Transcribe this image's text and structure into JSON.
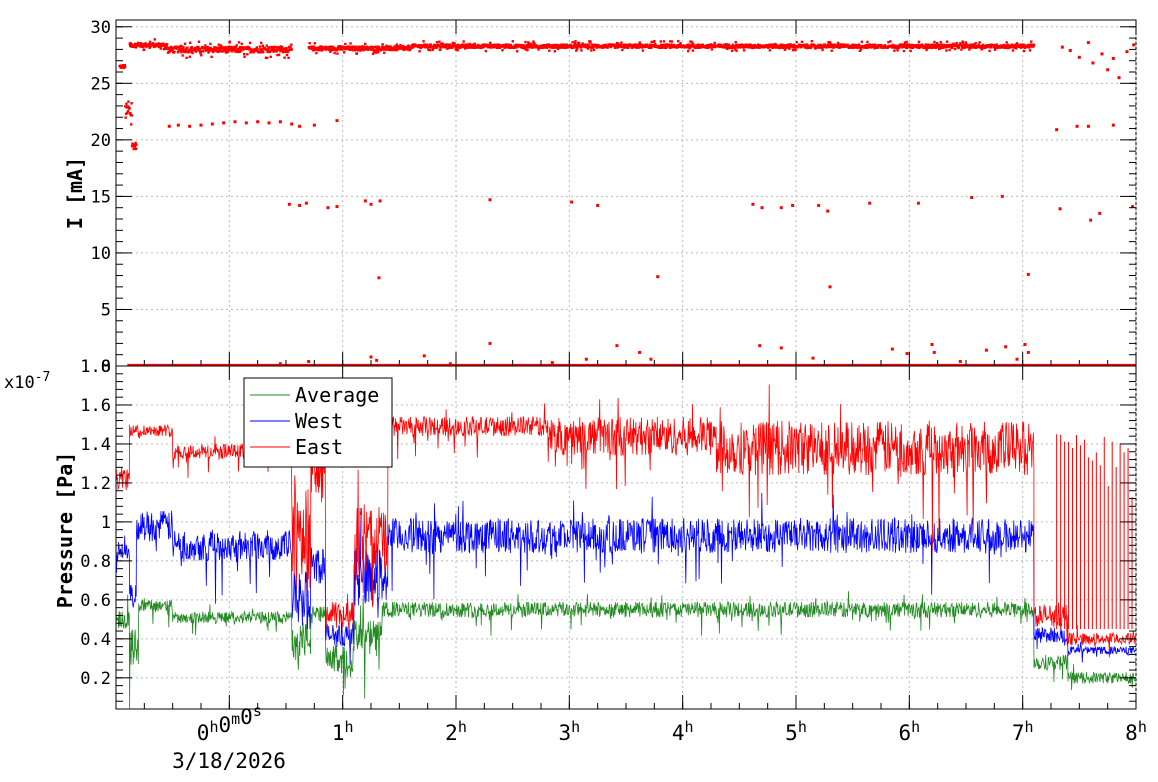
{
  "chart_data": [
    {
      "type": "scatter",
      "id": "current",
      "ylabel": "I [mA]",
      "ylim": [
        0,
        30.6
      ],
      "xlim": [
        -1.0,
        8.0
      ],
      "x_unit": "hours",
      "yticks": [
        "0",
        "5",
        "10",
        "15",
        "20",
        "25",
        "30"
      ],
      "ytick_values": [
        0,
        5,
        10,
        15,
        20,
        25,
        30
      ],
      "grid": true,
      "series": [
        {
          "color": "#ff0000",
          "bands": [
            {
              "from": -0.97,
              "to": -0.92,
              "level": 26.5,
              "jitter": 0.3
            },
            {
              "from": -0.92,
              "to": -0.86,
              "level": 22.5,
              "jitter": 1.5
            },
            {
              "from": -0.86,
              "to": -0.82,
              "level": 19.5,
              "jitter": 0.6
            },
            {
              "from": -0.88,
              "to": -0.55,
              "level": 28.4,
              "jitter": 0.35
            },
            {
              "from": -0.55,
              "to": 0.55,
              "level": 28.0,
              "jitter": 0.5
            },
            {
              "from": 0.7,
              "to": 1.6,
              "level": 28.1,
              "jitter": 0.35
            },
            {
              "from": 1.6,
              "to": 7.1,
              "level": 28.3,
              "jitter": 0.3
            }
          ],
          "points": [
            [
              -0.53,
              21.2
            ],
            [
              -0.45,
              21.3
            ],
            [
              -0.35,
              21.2
            ],
            [
              -0.25,
              21.3
            ],
            [
              -0.15,
              21.4
            ],
            [
              -0.05,
              21.5
            ],
            [
              0.05,
              21.6
            ],
            [
              0.15,
              21.5
            ],
            [
              0.25,
              21.6
            ],
            [
              0.35,
              21.5
            ],
            [
              0.45,
              21.6
            ],
            [
              0.55,
              21.4
            ],
            [
              0.62,
              21.2
            ],
            [
              0.75,
              21.3
            ],
            [
              0.95,
              21.7
            ],
            [
              0.53,
              14.3
            ],
            [
              0.62,
              14.2
            ],
            [
              0.68,
              14.4
            ],
            [
              0.87,
              14.0
            ],
            [
              0.95,
              14.1
            ],
            [
              1.2,
              14.6
            ],
            [
              1.25,
              14.3
            ],
            [
              1.33,
              14.6
            ],
            [
              1.32,
              7.8
            ],
            [
              2.3,
              14.7
            ],
            [
              3.02,
              14.5
            ],
            [
              3.25,
              14.2
            ],
            [
              3.78,
              7.9
            ],
            [
              4.62,
              14.3
            ],
            [
              4.7,
              14.0
            ],
            [
              4.87,
              14.0
            ],
            [
              4.97,
              14.2
            ],
            [
              5.2,
              14.2
            ],
            [
              5.28,
              13.7
            ],
            [
              5.3,
              7.0
            ],
            [
              5.65,
              14.4
            ],
            [
              6.08,
              14.4
            ],
            [
              6.55,
              14.9
            ],
            [
              6.82,
              15.0
            ],
            [
              7.05,
              8.1
            ],
            [
              7.3,
              20.9
            ],
            [
              7.48,
              21.2
            ],
            [
              7.58,
              21.2
            ],
            [
              7.8,
              21.3
            ],
            [
              7.33,
              13.9
            ],
            [
              7.6,
              12.9
            ],
            [
              7.68,
              13.5
            ],
            [
              7.97,
              14.1
            ],
            [
              7.35,
              28.2
            ],
            [
              7.42,
              27.9
            ],
            [
              7.5,
              27.3
            ],
            [
              7.58,
              28.6
            ],
            [
              7.62,
              26.8
            ],
            [
              7.7,
              27.6
            ],
            [
              7.75,
              26.2
            ],
            [
              7.85,
              25.5
            ],
            [
              7.92,
              27.8
            ],
            [
              7.98,
              28.4
            ],
            [
              7.8,
              27.2
            ],
            [
              1.25,
              0.8
            ],
            [
              1.3,
              0.5
            ],
            [
              1.72,
              0.9
            ],
            [
              2.3,
              2.0
            ],
            [
              3.15,
              0.6
            ],
            [
              3.42,
              1.8
            ],
            [
              3.62,
              1.2
            ],
            [
              3.72,
              0.6
            ],
            [
              4.68,
              1.8
            ],
            [
              4.87,
              1.6
            ],
            [
              5.85,
              1.5
            ],
            [
              5.98,
              1.1
            ],
            [
              6.2,
              1.9
            ],
            [
              6.22,
              1.2
            ],
            [
              6.68,
              1.4
            ],
            [
              6.85,
              1.7
            ],
            [
              6.95,
              0.6
            ],
            [
              7.02,
              1.9
            ],
            [
              7.05,
              1.2
            ],
            [
              0.7,
              0.4
            ],
            [
              0.45,
              0.2
            ],
            [
              1.95,
              0.2
            ],
            [
              2.85,
              0.3
            ],
            [
              5.15,
              0.7
            ],
            [
              6.45,
              0.4
            ]
          ],
          "baseline": {
            "from": -0.9,
            "to": 8.0,
            "level": 0.08
          }
        }
      ]
    },
    {
      "type": "line",
      "id": "pressure",
      "ylabel": "Pressure [Pa]",
      "y_multiplier": "x10",
      "y_multiplier_exponent": "-7",
      "ylim": [
        0.04,
        1.8
      ],
      "xlim": [
        -1.0,
        8.0
      ],
      "x_unit": "hours",
      "yticks": [
        "0.2",
        "0.4",
        "0.6",
        "0.8",
        "1",
        "1.2",
        "1.4",
        "1.6",
        "1.8"
      ],
      "ytick_values": [
        0.2,
        0.4,
        0.6,
        0.8,
        1.0,
        1.2,
        1.4,
        1.6,
        1.8
      ],
      "grid": true,
      "legend": {
        "entries": [
          "Average",
          "West",
          "East"
        ],
        "position": "top-left"
      },
      "series": [
        {
          "name": "Average",
          "color": "#228b22",
          "segments": [
            {
              "from": -1.0,
              "to": -0.88,
              "level": 0.5,
              "noise": 0.05
            },
            {
              "from": -0.88,
              "to": -0.8,
              "level": 0.36,
              "noise": 0.1
            },
            {
              "from": -0.8,
              "to": -0.5,
              "level": 0.57,
              "noise": 0.03
            },
            {
              "from": -0.5,
              "to": 0.55,
              "level": 0.51,
              "noise": 0.03
            },
            {
              "from": 0.55,
              "to": 0.72,
              "level": 0.4,
              "noise": 0.1
            },
            {
              "from": 0.72,
              "to": 0.85,
              "level": 0.52,
              "noise": 0.05
            },
            {
              "from": 0.85,
              "to": 1.1,
              "level": 0.3,
              "noise": 0.07
            },
            {
              "from": 1.1,
              "to": 1.35,
              "level": 0.4,
              "noise": 0.1
            },
            {
              "from": 1.35,
              "to": 7.1,
              "level": 0.55,
              "noise": 0.04
            },
            {
              "from": 7.1,
              "to": 7.4,
              "level": 0.28,
              "noise": 0.04
            },
            {
              "from": 7.4,
              "to": 8.0,
              "level": 0.2,
              "noise": 0.03
            }
          ]
        },
        {
          "name": "West",
          "color": "#0000ff",
          "segments": [
            {
              "from": -1.0,
              "to": -0.88,
              "level": 0.85,
              "noise": 0.05
            },
            {
              "from": -0.88,
              "to": -0.82,
              "level": 0.62,
              "noise": 0.06
            },
            {
              "from": -0.82,
              "to": -0.5,
              "level": 0.98,
              "noise": 0.08
            },
            {
              "from": -0.5,
              "to": 0.55,
              "level": 0.88,
              "noise": 0.08
            },
            {
              "from": 0.55,
              "to": 0.72,
              "level": 0.6,
              "noise": 0.15
            },
            {
              "from": 0.72,
              "to": 0.85,
              "level": 0.78,
              "noise": 0.1
            },
            {
              "from": 0.85,
              "to": 1.1,
              "level": 0.42,
              "noise": 0.06
            },
            {
              "from": 1.1,
              "to": 1.4,
              "level": 0.72,
              "noise": 0.15
            },
            {
              "from": 1.4,
              "to": 7.1,
              "level": 0.93,
              "noise": 0.09
            },
            {
              "from": 7.1,
              "to": 7.4,
              "level": 0.42,
              "noise": 0.04
            },
            {
              "from": 7.4,
              "to": 8.0,
              "level": 0.34,
              "noise": 0.02
            }
          ]
        },
        {
          "name": "East",
          "color": "#ff0000",
          "segments": [
            {
              "from": -1.0,
              "to": -0.88,
              "level": 1.22,
              "noise": 0.06
            },
            {
              "from": -0.88,
              "to": -0.5,
              "level": 1.47,
              "noise": 0.03
            },
            {
              "from": -0.5,
              "to": 0.55,
              "level": 1.36,
              "noise": 0.04
            },
            {
              "from": 0.55,
              "to": 0.72,
              "level": 0.95,
              "noise": 0.3
            },
            {
              "from": 0.72,
              "to": 0.85,
              "level": 1.25,
              "noise": 0.15
            },
            {
              "from": 0.85,
              "to": 1.1,
              "level": 0.52,
              "noise": 0.07
            },
            {
              "from": 1.1,
              "to": 1.4,
              "level": 0.9,
              "noise": 0.2
            },
            {
              "from": 1.4,
              "to": 2.8,
              "level": 1.49,
              "noise": 0.05
            },
            {
              "from": 2.8,
              "to": 4.3,
              "level": 1.44,
              "noise": 0.1
            },
            {
              "from": 4.3,
              "to": 7.1,
              "level": 1.38,
              "noise": 0.14
            },
            {
              "from": 7.1,
              "to": 7.4,
              "level": 0.52,
              "noise": 0.06
            },
            {
              "from": 7.4,
              "to": 8.0,
              "level": 0.4,
              "noise": 0.03
            }
          ],
          "spikes_region": {
            "from": 7.3,
            "to": 8.0,
            "top": 1.45
          }
        }
      ]
    }
  ],
  "time_axis": {
    "ticks": [
      {
        "hours": 0,
        "label": "0",
        "sup": "h",
        "label2": "0",
        "sup2": "m",
        "label3": "0",
        "sup3": "s"
      },
      {
        "hours": 1,
        "label": "1",
        "sup": "h"
      },
      {
        "hours": 2,
        "label": "2",
        "sup": "h"
      },
      {
        "hours": 3,
        "label": "3",
        "sup": "h"
      },
      {
        "hours": 4,
        "label": "4",
        "sup": "h"
      },
      {
        "hours": 5,
        "label": "5",
        "sup": "h"
      },
      {
        "hours": 6,
        "label": "6",
        "sup": "h"
      },
      {
        "hours": 7,
        "label": "7",
        "sup": "h"
      },
      {
        "hours": 8,
        "label": "8",
        "sup": "h"
      }
    ],
    "date": "3/18/2026"
  }
}
